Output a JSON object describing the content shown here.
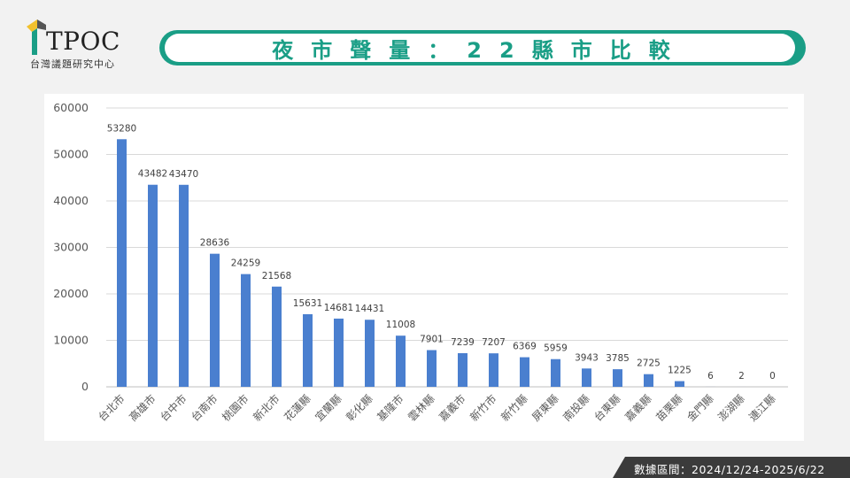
{
  "header": {
    "logo_text": "TPOC",
    "logo_sub": "台灣議題研究中心",
    "title": "夜市聲量：22縣市比較"
  },
  "colors": {
    "accent": "#1a9e86",
    "bar": "#4a7fcf",
    "footer_bg": "#3b3b3b"
  },
  "footer": {
    "label": "數據區間：2024/12/24-2025/6/22"
  },
  "chart_data": {
    "type": "bar",
    "categories": [
      "台北市",
      "高雄市",
      "台中市",
      "台南市",
      "桃園市",
      "新北市",
      "花蓮縣",
      "宜蘭縣",
      "彰化縣",
      "基隆市",
      "雲林縣",
      "嘉義市",
      "新竹市",
      "新竹縣",
      "屏東縣",
      "南投縣",
      "台東縣",
      "嘉義縣",
      "苗栗縣",
      "金門縣",
      "澎湖縣",
      "連江縣"
    ],
    "values": [
      53280,
      43482,
      43470,
      28636,
      24259,
      21568,
      15631,
      14681,
      14431,
      11008,
      7901,
      7239,
      7207,
      6369,
      5959,
      3943,
      3785,
      2725,
      1225,
      6,
      2,
      0
    ],
    "ylim": [
      0,
      60000
    ],
    "yticks": [
      "0",
      "10000",
      "20000",
      "30000",
      "40000",
      "50000",
      "60000"
    ],
    "grid": true,
    "legend": "none"
  }
}
